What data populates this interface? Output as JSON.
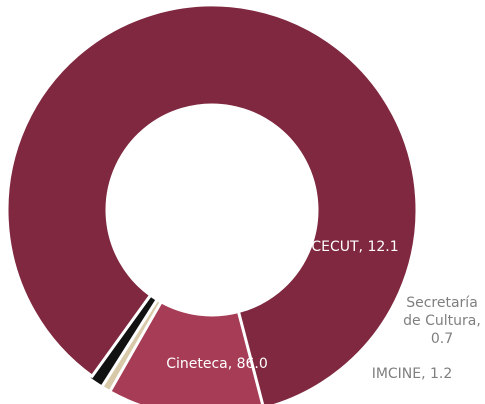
{
  "chart_data": {
    "type": "pie",
    "variant": "donut",
    "title": "",
    "slices": [
      {
        "name": "CECUT",
        "value": 12.1,
        "color": "#a63c55",
        "label_lines": [
          "CECUT, 12.1"
        ]
      },
      {
        "name": "Secretaría de Cultura",
        "value": 0.7,
        "color": "#d8c9a8",
        "label_lines": [
          "Secretaría",
          "de Cultura,",
          "0.7"
        ]
      },
      {
        "name": "IMCINE",
        "value": 1.2,
        "color": "#111111",
        "label_lines": [
          "IMCINE, 1.2"
        ]
      },
      {
        "name": "Cineteca",
        "value": 86.0,
        "color": "#7f2840",
        "label_lines": [
          "Cineteca, 86.0"
        ]
      }
    ]
  }
}
